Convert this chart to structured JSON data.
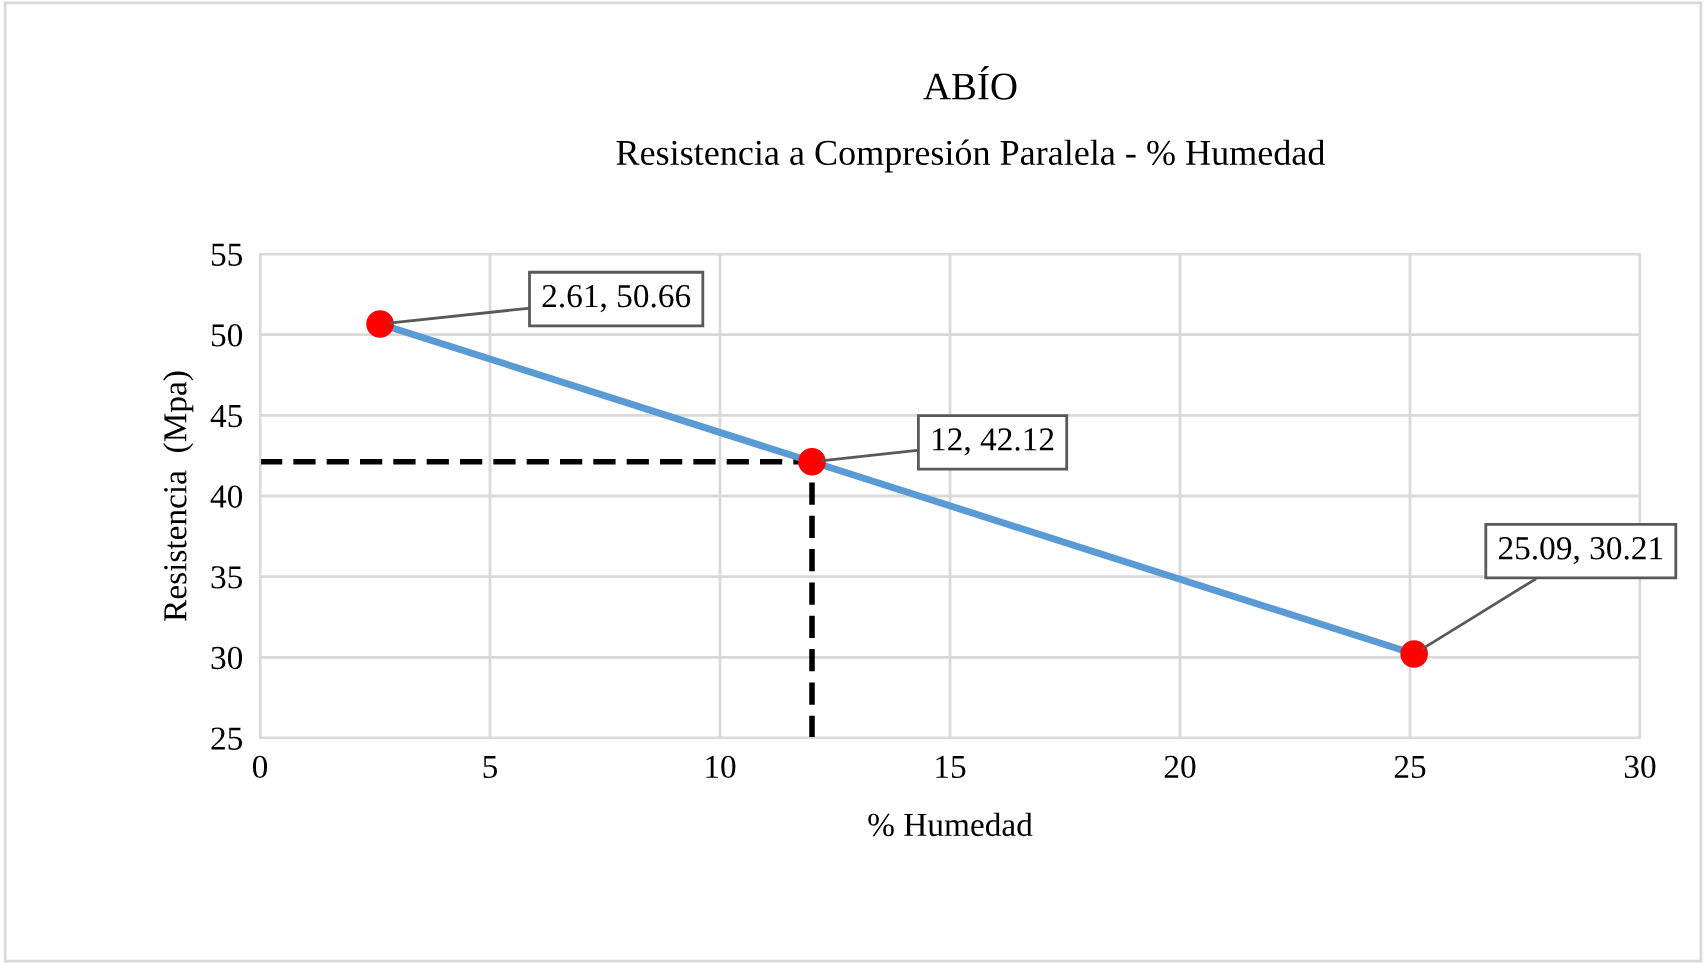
{
  "chart_data": {
    "type": "line",
    "title": "ABÍO",
    "subtitle": "Resistencia a Compresión Paralela - % Humedad",
    "xlabel": "% Humedad",
    "ylabel": "Resistencia  (Mpa)",
    "x": [
      2.61,
      12,
      25.09
    ],
    "series": [
      {
        "color": "#5b9bd5",
        "values": [
          50.66,
          42.12,
          30.21
        ],
        "line_style": "solid"
      },
      {
        "type": "scatter",
        "color": "#ff0000",
        "values": [
          50.66,
          42.12,
          30.21
        ],
        "marker": "circle"
      }
    ],
    "ref_lines": [
      {
        "axis": "y",
        "value": 42.12,
        "color": "#000000",
        "line_style": "dashed"
      },
      {
        "axis": "x",
        "value": 12,
        "color": "#000000",
        "line_style": "dashed"
      }
    ],
    "annotations": [
      {
        "text": "2.61, 50.66",
        "x": 2.61,
        "y": 50.66
      },
      {
        "text": "12, 42.12",
        "x": 12,
        "y": 42.12
      },
      {
        "text": "25.09, 30.21",
        "x": 25.09,
        "y": 30.21
      }
    ],
    "xlim": [
      0,
      30
    ],
    "xticks": [
      0,
      5,
      10,
      15,
      20,
      25,
      30
    ],
    "ylim": [
      25,
      55
    ],
    "yticks": [
      25,
      30,
      35,
      40,
      45,
      50,
      55
    ],
    "grid": true,
    "legend": false
  }
}
